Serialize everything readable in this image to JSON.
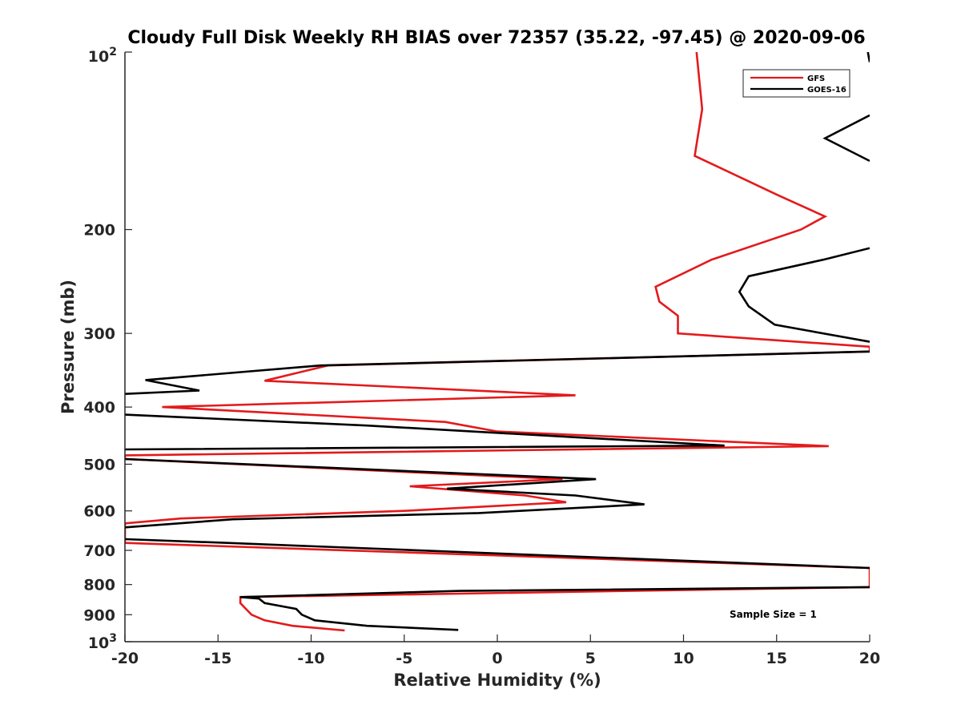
{
  "chart_data": {
    "type": "line",
    "title": "Cloudy Full Disk Weekly RH BIAS over 72357 (35.22, -97.45) @ 2020-09-06",
    "xlabel": "Relative Humidity (%)",
    "ylabel": "Pressure (mb)",
    "xlim": [
      -20,
      20
    ],
    "ylim": [
      100,
      1000
    ],
    "yscale": "log",
    "y_reversed": true,
    "grid": false,
    "legend_position": "top-right",
    "annotation": "Sample Size = 1",
    "x_ticks": [
      -20,
      -15,
      -10,
      -5,
      0,
      5,
      10,
      15,
      20
    ],
    "x_tick_labels": [
      "-20",
      "-15",
      "-10",
      "-5",
      "0",
      "5",
      "10",
      "15",
      "20"
    ],
    "y_ticks": [
      200,
      300,
      400,
      500,
      600,
      700,
      800,
      900
    ],
    "y_tick_labels": [
      "200",
      "300",
      "400",
      "500",
      "600",
      "700",
      "800",
      "900"
    ],
    "y_top_label": {
      "base": "10",
      "exp": "2"
    },
    "y_bottom_label": {
      "base": "10",
      "exp": "3"
    },
    "series": [
      {
        "name": "GFS",
        "color": "#e31a1c",
        "points": [
          [
            10.7,
            100
          ],
          [
            11.0,
            125
          ],
          [
            10.6,
            150
          ],
          [
            15.1,
            175
          ],
          [
            17.6,
            190
          ],
          [
            16.3,
            200
          ],
          [
            11.5,
            225
          ],
          [
            8.5,
            250
          ],
          [
            8.7,
            265
          ],
          [
            9.7,
            280
          ],
          [
            9.7,
            300
          ],
          [
            20,
            316
          ],
          [
            20,
            322
          ],
          [
            -9.1,
            340
          ],
          [
            -12.5,
            361
          ],
          [
            4.2,
            382
          ],
          [
            -18.0,
            400
          ],
          [
            -2.8,
            424
          ],
          [
            0.0,
            440
          ],
          [
            17.8,
            466
          ],
          [
            -20,
            483
          ],
          [
            -20,
            490
          ],
          [
            3.5,
            530
          ],
          [
            -4.7,
            545
          ],
          [
            1.5,
            565
          ],
          [
            3.7,
            580
          ],
          [
            -5.0,
            600
          ],
          [
            -17.0,
            618
          ],
          [
            -20,
            630
          ],
          [
            -20,
            680
          ],
          [
            20,
            750
          ],
          [
            20,
            808
          ],
          [
            -13.8,
            840
          ],
          [
            -13.8,
            860
          ],
          [
            -13.5,
            880
          ],
          [
            -13.2,
            900
          ],
          [
            -12.5,
            920
          ],
          [
            -11.0,
            940
          ],
          [
            -8.2,
            957
          ]
        ]
      },
      {
        "name": "GOES-16",
        "color": "#000000",
        "segments": [
          [
            [
              19.9,
              100
            ],
            [
              20,
              104
            ]
          ],
          [
            [
              20,
              128
            ],
            [
              17.6,
              140
            ],
            [
              20,
              153
            ]
          ],
          [
            [
              20,
              215
            ],
            [
              17.5,
              225
            ],
            [
              13.5,
              240
            ],
            [
              13.0,
              255
            ],
            [
              13.5,
              270
            ],
            [
              14.9,
              290
            ],
            [
              20,
              310
            ]
          ],
          [
            [
              20,
              322
            ],
            [
              -9.5,
              340
            ],
            [
              -18.9,
              360
            ],
            [
              -16.0,
              375
            ],
            [
              -20,
              380
            ]
          ],
          [
            [
              -20,
              412
            ],
            [
              -7.0,
              430
            ],
            [
              12.2,
              465
            ],
            [
              -20,
              472
            ]
          ],
          [
            [
              -20,
              490
            ],
            [
              5.3,
              530
            ],
            [
              -2.7,
              550
            ],
            [
              4.2,
              565
            ],
            [
              7.9,
              585
            ],
            [
              -1.0,
              605
            ],
            [
              -14.2,
              620
            ],
            [
              -20,
              640
            ]
          ],
          [
            [
              -20,
              670
            ],
            [
              -14.5,
              680
            ],
            [
              20,
              750
            ]
          ],
          [
            [
              20,
              808
            ],
            [
              -2.0,
              820
            ],
            [
              -13.8,
              840
            ],
            [
              -12.8,
              845
            ],
            [
              -12.5,
              860
            ],
            [
              -10.8,
              880
            ],
            [
              -10.5,
              900
            ],
            [
              -9.8,
              920
            ],
            [
              -7.0,
              940
            ],
            [
              -2.1,
              955
            ]
          ]
        ]
      }
    ]
  }
}
